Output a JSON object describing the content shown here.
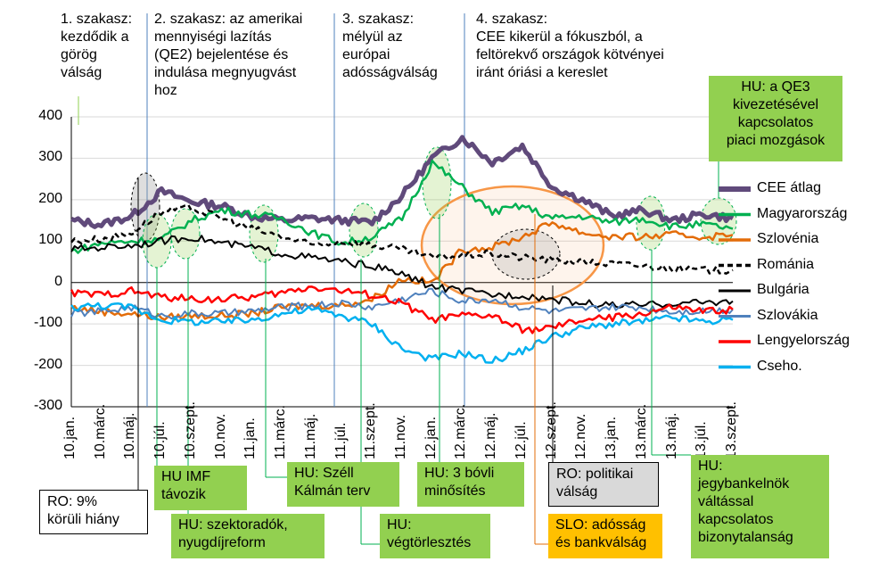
{
  "chart_data": {
    "type": "line",
    "ylim": [
      -300,
      400
    ],
    "yticks": [
      "400",
      "300",
      "200",
      "100",
      "0",
      "-100",
      "-200",
      "-300"
    ],
    "xticks": [
      "10.jan.",
      "10.márc.",
      "10.máj.",
      "10.júl.",
      "10.szept.",
      "10.nov.",
      "11.jan.",
      "11.márc.",
      "11.máj.",
      "11.júl.",
      "11.szept.",
      "11.nov.",
      "12.jan.",
      "12.márc.",
      "12.máj.",
      "12.júl.",
      "12.szept.",
      "12.nov.",
      "13.jan.",
      "13.márc.",
      "13.máj.",
      "13.júl.",
      "13.szept."
    ],
    "x": [
      0,
      1,
      2,
      3,
      4,
      5,
      6,
      7,
      8,
      9,
      10,
      11,
      12,
      13,
      14,
      15,
      16,
      17,
      18,
      19,
      20,
      21,
      22
    ],
    "series": [
      {
        "name": "CEE átlag",
        "color": "#604a7b",
        "dash": "solid",
        "width": 5,
        "values": [
          150,
          140,
          160,
          220,
          195,
          185,
          160,
          150,
          155,
          150,
          145,
          210,
          300,
          350,
          290,
          330,
          230,
          200,
          160,
          175,
          150,
          165,
          155
        ]
      },
      {
        "name": "Magyarország",
        "color": "#00b050",
        "dash": "solid",
        "width": 2.5,
        "values": [
          75,
          95,
          100,
          105,
          150,
          175,
          165,
          155,
          120,
          95,
          110,
          155,
          290,
          230,
          170,
          185,
          155,
          160,
          145,
          155,
          135,
          140,
          130
        ]
      },
      {
        "name": "Szlovénia",
        "color": "#e36c09",
        "dash": "solid",
        "width": 2.5,
        "values": [
          -60,
          -70,
          -75,
          -85,
          -80,
          -80,
          -75,
          -60,
          -55,
          -55,
          -40,
          10,
          0,
          80,
          85,
          110,
          145,
          120,
          110,
          110,
          115,
          110,
          115
        ]
      },
      {
        "name": "Románia",
        "color": "#000000",
        "dash": "6,4",
        "width": 2.5,
        "values": [
          100,
          105,
          120,
          170,
          180,
          155,
          130,
          110,
          90,
          100,
          90,
          80,
          60,
          65,
          70,
          60,
          55,
          50,
          45,
          40,
          35,
          30,
          30
        ]
      },
      {
        "name": "Bulgária",
        "color": "#000000",
        "dash": "solid",
        "width": 2,
        "values": [
          80,
          85,
          90,
          100,
          110,
          95,
          85,
          70,
          60,
          50,
          40,
          20,
          -10,
          -20,
          -30,
          -30,
          -40,
          -50,
          -55,
          -55,
          -50,
          -48,
          -45
        ]
      },
      {
        "name": "Szlovákia",
        "color": "#4f81bd",
        "dash": "solid",
        "width": 2,
        "values": [
          -75,
          -70,
          -60,
          -80,
          -75,
          -75,
          -70,
          -60,
          -55,
          -50,
          -60,
          -40,
          -20,
          -45,
          -40,
          -60,
          -70,
          -65,
          -60,
          -60,
          -70,
          -68,
          -65
        ]
      },
      {
        "name": "Lengyelország",
        "color": "#ff0000",
        "dash": "solid",
        "width": 2.5,
        "values": [
          -25,
          -30,
          -20,
          -35,
          -40,
          -40,
          -35,
          -25,
          -10,
          -20,
          -30,
          -50,
          -90,
          -80,
          -80,
          -115,
          -110,
          -90,
          -85,
          -75,
          -60,
          -70,
          -65
        ]
      },
      {
        "name": "Cseho.",
        "color": "#00b0f0",
        "dash": "solid",
        "width": 2.5,
        "values": [
          -60,
          -55,
          -60,
          -90,
          -95,
          -95,
          -90,
          -75,
          -65,
          -80,
          -100,
          -160,
          -185,
          -170,
          -190,
          -165,
          -130,
          -110,
          -100,
          -95,
          -85,
          -95,
          -90
        ]
      }
    ]
  },
  "phases": [
    {
      "text": "1. szakasz:\nkezdődik a\ngörög\nválság"
    },
    {
      "text": "2. szakasz: az amerikai\nmennyiségi lazítás\n(QE2) bejelentése és\nindulása megnyugvást\nhoz"
    },
    {
      "text": "3.  szakasz:\nmélyül az\neurópai\nadósságválság"
    },
    {
      "text": "4. szakasz:\nCEE kikerül a fókuszból,  a\nfeltörekvő országok kötvényei\niránt óriási a kereslet"
    }
  ],
  "annotations": {
    "hu_qe3": "HU:  a QE3\nkivezetésével\nkapcsolatos\npiaci mozgások",
    "ro_hiany": "RO: 9%\nkörüli hiány",
    "hu_imf": "HU  IMF\ntávozik",
    "hu_szektor": "HU:  szektoradók,\nnyugdíjreform",
    "hu_szell": "HU:  Széll\nKálmán terv",
    "hu_vegtor": "HU:\nvégtörlesztés",
    "hu_3bovli": "HU: 3 bóvli\nminősítés",
    "ro_politikai": "RO: politikai\nválság",
    "slo_adossag": "SLO: adósság\nés bankválság",
    "hu_jegybank": "HU:\njegybankelnök\nváltással\nkapcsolatos\nbizonytalanság"
  },
  "colors": {
    "green_box": "#92d050",
    "gray_box": "#d9d9d9",
    "orange_box": "#ffc000",
    "phase_divider": "#4f81bd",
    "ellipse_orange": "#f79646"
  }
}
